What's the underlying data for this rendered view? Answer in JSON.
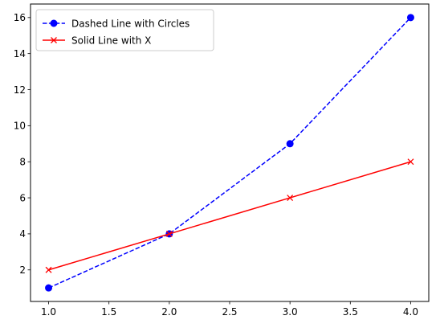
{
  "chart_data": {
    "type": "line",
    "title": "",
    "xlabel": "",
    "ylabel": "",
    "xlim": [
      0.85,
      4.15
    ],
    "ylim": [
      0.25,
      16.75
    ],
    "x_ticks": [
      1.0,
      1.5,
      2.0,
      2.5,
      3.0,
      3.5,
      4.0
    ],
    "x_tick_labels": [
      "1.0",
      "1.5",
      "2.0",
      "2.5",
      "3.0",
      "3.5",
      "4.0"
    ],
    "y_ticks": [
      2,
      4,
      6,
      8,
      10,
      12,
      14,
      16
    ],
    "y_tick_labels": [
      "2",
      "4",
      "6",
      "8",
      "10",
      "12",
      "14",
      "16"
    ],
    "grid": false,
    "legend": "top-left",
    "series": [
      {
        "name": "Dashed Line with Circles",
        "color": "#0000ff",
        "line_style": "dashed",
        "marker": "circle",
        "x": [
          1,
          2,
          3,
          4
        ],
        "y": [
          1,
          4,
          9,
          16
        ]
      },
      {
        "name": "Solid Line with X",
        "color": "#ff0000",
        "line_style": "solid",
        "marker": "x",
        "x": [
          1,
          2,
          3,
          4
        ],
        "y": [
          2,
          4,
          6,
          8
        ]
      }
    ]
  }
}
